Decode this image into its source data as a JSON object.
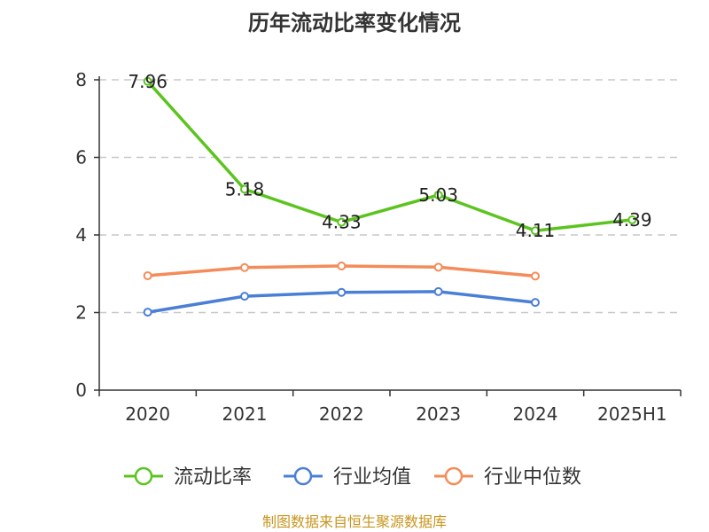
{
  "chart_data": {
    "type": "line",
    "title": "历年流动比率变化情况",
    "categories": [
      "2020",
      "2021",
      "2022",
      "2023",
      "2024",
      "2025H1"
    ],
    "ylim": [
      0,
      8
    ],
    "yticks": [
      0,
      2,
      4,
      6,
      8
    ],
    "grid": true,
    "legend_position": "bottom",
    "series": [
      {
        "name": "流动比率",
        "color": "#5cc41f",
        "values": [
          7.96,
          5.18,
          4.33,
          5.03,
          4.11,
          4.39
        ],
        "show_labels": true
      },
      {
        "name": "行业均值",
        "color": "#4a7fd6",
        "values": [
          2.01,
          2.42,
          2.52,
          2.54,
          2.26,
          null
        ],
        "show_labels": false
      },
      {
        "name": "行业中位数",
        "color": "#f48c5a",
        "values": [
          2.95,
          3.16,
          3.2,
          3.17,
          2.94,
          null
        ],
        "show_labels": false
      }
    ]
  },
  "footer": {
    "source": "制图数据来自恒生聚源数据库"
  }
}
